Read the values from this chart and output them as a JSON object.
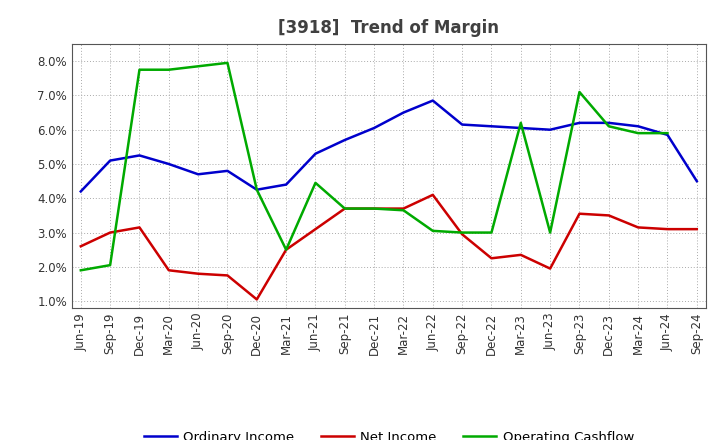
{
  "title": "[3918]  Trend of Margin",
  "x_labels": [
    "Jun-19",
    "Sep-19",
    "Dec-19",
    "Mar-20",
    "Jun-20",
    "Sep-20",
    "Dec-20",
    "Mar-21",
    "Jun-21",
    "Sep-21",
    "Dec-21",
    "Mar-22",
    "Jun-22",
    "Sep-22",
    "Dec-22",
    "Mar-23",
    "Jun-23",
    "Sep-23",
    "Dec-23",
    "Mar-24",
    "Jun-24",
    "Sep-24"
  ],
  "ordinary_income": [
    4.2,
    5.1,
    5.25,
    5.0,
    4.7,
    4.8,
    4.25,
    4.4,
    5.3,
    5.7,
    6.05,
    6.5,
    6.85,
    6.15,
    6.1,
    6.05,
    6.0,
    6.2,
    6.2,
    6.1,
    5.85,
    4.5
  ],
  "net_income": [
    2.6,
    3.0,
    3.15,
    1.9,
    1.8,
    1.75,
    1.05,
    2.5,
    3.1,
    3.7,
    3.7,
    3.7,
    4.1,
    2.95,
    2.25,
    2.35,
    1.95,
    3.55,
    3.5,
    3.15,
    3.1,
    3.1
  ],
  "operating_cashflow": [
    1.9,
    2.05,
    7.75,
    7.75,
    7.85,
    7.95,
    4.25,
    2.5,
    4.45,
    3.7,
    3.7,
    3.65,
    3.05,
    3.0,
    3.0,
    6.2,
    3.0,
    7.1,
    6.1,
    5.9,
    5.9,
    null
  ],
  "ylim": [
    0.8,
    8.5
  ],
  "yticks": [
    1.0,
    2.0,
    3.0,
    4.0,
    5.0,
    6.0,
    7.0,
    8.0
  ],
  "ordinary_color": "#0000cc",
  "net_income_color": "#cc0000",
  "cashflow_color": "#00aa00",
  "bg_color": "#ffffff",
  "plot_bg_color": "#ffffff",
  "legend_labels": [
    "Ordinary Income",
    "Net Income",
    "Operating Cashflow"
  ],
  "title_fontsize": 12,
  "label_fontsize": 8.5,
  "title_color": "#404040"
}
